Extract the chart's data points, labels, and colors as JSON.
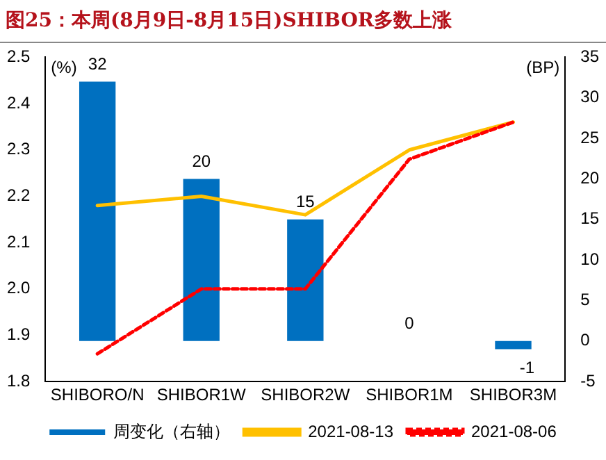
{
  "chart_data": {
    "type": "bar",
    "title": "图25：本周(8月9日-8月15日)SHIBOR多数上涨",
    "categories": [
      "SHIBORO/N",
      "SHIBOR1W",
      "SHIBOR2W",
      "SHIBOR1M",
      "SHIBOR3M"
    ],
    "series": [
      {
        "name": "周变化（右轴）",
        "axis": "y2",
        "color": "#0070c0",
        "values": [
          32,
          20,
          15,
          0,
          -1
        ],
        "value_labels": [
          "32",
          "20",
          "15",
          "0",
          "-1"
        ]
      },
      {
        "name": "2021-08-13",
        "type": "line",
        "color": "#ffc000",
        "line_style": "solid",
        "values": [
          2.18,
          2.2,
          2.16,
          2.3,
          2.36
        ]
      },
      {
        "name": "2021-08-06",
        "type": "line",
        "color": "#ff0000",
        "line_style": "dashed",
        "values": [
          1.86,
          2.0,
          2.0,
          2.28,
          2.36
        ]
      }
    ],
    "ylabel": "(%)",
    "y2label": "(BP)",
    "ylim": [
      1.8,
      2.5
    ],
    "yticks": [
      1.8,
      1.9,
      {
        "value": 2,
        "label": "2.0"
      },
      2.1,
      2.2,
      2.3,
      2.4,
      2.5
    ],
    "y2lim": [
      -5,
      35
    ],
    "y2ticks": [
      -5,
      0,
      5,
      10,
      15,
      20,
      25,
      30,
      35
    ],
    "legend": "bottom",
    "grid": false,
    "marker": "none"
  }
}
